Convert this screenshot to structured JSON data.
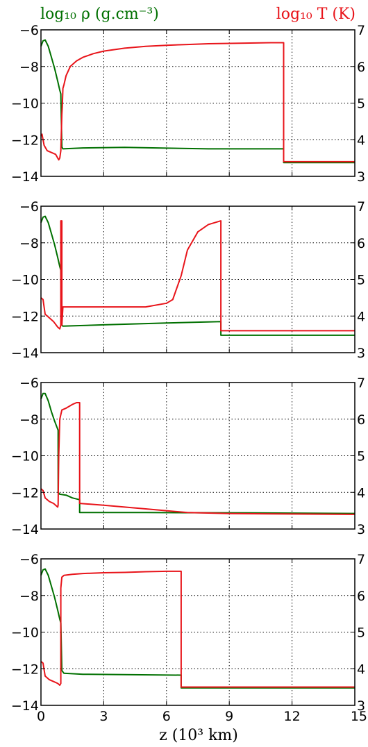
{
  "labels": {
    "left_axis": "log₁₀ ρ (g.cm⁻³)",
    "right_axis": "log₁₀ T (K)",
    "x_axis": "z (10³ km)"
  },
  "colors": {
    "density": "#007000",
    "temperature": "#e8141a"
  },
  "chart_data": [
    {
      "type": "line",
      "xlim": [
        0,
        15
      ],
      "ylim": [
        -14,
        -6
      ],
      "y2lim": [
        3,
        7
      ],
      "xticks": [
        "0",
        "3",
        "6",
        "9",
        "12",
        "15"
      ],
      "yticks": [
        "-6",
        "-8",
        "-10",
        "-12",
        "-14"
      ],
      "y2ticks": [
        "7",
        "6",
        "5",
        "4",
        "3"
      ],
      "grid": true,
      "series": [
        {
          "name": "log10 rho",
          "axis": "left",
          "x": [
            0,
            0.1,
            0.2,
            0.35,
            0.5,
            0.65,
            0.8,
            0.9,
            0.95,
            1.0,
            1.05,
            2.0,
            4.0,
            6.0,
            8.0,
            10.0,
            11.6,
            11.6,
            15.0
          ],
          "y": [
            -6.9,
            -6.6,
            -6.55,
            -6.9,
            -7.5,
            -8.1,
            -8.8,
            -9.3,
            -9.5,
            -12.4,
            -12.5,
            -12.45,
            -12.42,
            -12.46,
            -12.5,
            -12.5,
            -12.5,
            -13.25,
            -13.25
          ]
        },
        {
          "name": "log10 T",
          "axis": "right",
          "x": [
            0,
            0.05,
            0.15,
            0.3,
            0.5,
            0.7,
            0.8,
            0.85,
            0.9,
            0.95,
            1.0,
            1.02,
            1.05,
            1.1,
            1.2,
            1.4,
            1.7,
            2.0,
            2.5,
            3.0,
            4.0,
            5.0,
            6.0,
            7.0,
            8.0,
            9.0,
            10.0,
            11.0,
            11.6,
            11.6,
            15.0
          ],
          "y": [
            4.1,
            4.15,
            3.85,
            3.7,
            3.65,
            3.6,
            3.5,
            3.45,
            3.5,
            3.7,
            4.7,
            4.9,
            5.4,
            5.5,
            5.75,
            6.0,
            6.15,
            6.25,
            6.35,
            6.42,
            6.5,
            6.55,
            6.58,
            6.6,
            6.62,
            6.63,
            6.64,
            6.65,
            6.65,
            3.4,
            3.4
          ]
        }
      ]
    },
    {
      "type": "line",
      "xlim": [
        0,
        15
      ],
      "ylim": [
        -14,
        -6
      ],
      "y2lim": [
        3,
        7
      ],
      "xticks": [
        "0",
        "3",
        "6",
        "9",
        "12",
        "15"
      ],
      "yticks": [
        "-6",
        "-8",
        "-10",
        "-12",
        "-14"
      ],
      "y2ticks": [
        "7",
        "6",
        "5",
        "4",
        "3"
      ],
      "grid": true,
      "series": [
        {
          "name": "log10 rho",
          "axis": "left",
          "x": [
            0,
            0.1,
            0.2,
            0.35,
            0.5,
            0.65,
            0.8,
            0.9,
            0.95,
            1.0,
            1.05,
            3.0,
            6.0,
            8.6,
            8.6,
            15.0
          ],
          "y": [
            -6.9,
            -6.6,
            -6.55,
            -6.9,
            -7.5,
            -8.1,
            -8.8,
            -9.3,
            -9.5,
            -12.5,
            -12.55,
            -12.48,
            -12.38,
            -12.3,
            -13.05,
            -13.05
          ]
        },
        {
          "name": "log10 T",
          "axis": "right",
          "x": [
            0,
            0.1,
            0.2,
            0.4,
            0.6,
            0.8,
            0.9,
            0.95,
            0.95,
            1.0,
            1.0,
            1.05,
            3.0,
            5.0,
            6.0,
            6.3,
            6.7,
            7.0,
            7.5,
            8.0,
            8.6,
            8.6,
            15.0
          ],
          "y": [
            4.5,
            4.45,
            4.05,
            3.95,
            3.85,
            3.7,
            3.65,
            3.75,
            6.6,
            6.6,
            3.75,
            4.25,
            4.25,
            4.25,
            4.35,
            4.45,
            5.1,
            5.8,
            6.3,
            6.5,
            6.6,
            3.6,
            3.6
          ]
        }
      ]
    },
    {
      "type": "line",
      "xlim": [
        0,
        15
      ],
      "ylim": [
        -14,
        -6
      ],
      "y2lim": [
        3,
        7
      ],
      "xticks": [
        "0",
        "3",
        "6",
        "9",
        "12",
        "15"
      ],
      "yticks": [
        "-6",
        "-8",
        "-10",
        "-12",
        "-14"
      ],
      "y2ticks": [
        "7",
        "6",
        "5",
        "4",
        "3"
      ],
      "grid": true,
      "series": [
        {
          "name": "log10 rho",
          "axis": "left",
          "x": [
            0,
            0.1,
            0.2,
            0.35,
            0.5,
            0.65,
            0.75,
            0.82,
            0.82,
            0.9,
            1.2,
            1.5,
            1.85,
            1.85,
            5.0,
            10.0,
            15.0
          ],
          "y": [
            -6.9,
            -6.6,
            -6.6,
            -7.0,
            -7.6,
            -8.1,
            -8.4,
            -8.6,
            -12.0,
            -12.1,
            -12.15,
            -12.3,
            -12.4,
            -13.1,
            -13.1,
            -13.12,
            -13.15
          ]
        },
        {
          "name": "log10 T",
          "axis": "right",
          "x": [
            0,
            0.1,
            0.2,
            0.4,
            0.6,
            0.7,
            0.8,
            0.82,
            0.85,
            0.9,
            1.0,
            1.2,
            1.5,
            1.7,
            1.85,
            1.85,
            3.0,
            5.0,
            7.0,
            9.0,
            15.0
          ],
          "y": [
            4.1,
            4.05,
            3.85,
            3.75,
            3.7,
            3.65,
            3.6,
            3.65,
            5.0,
            6.0,
            6.25,
            6.3,
            6.4,
            6.45,
            6.45,
            3.7,
            3.65,
            3.55,
            3.45,
            3.42,
            3.4
          ]
        }
      ]
    },
    {
      "type": "line",
      "xlim": [
        0,
        15
      ],
      "ylim": [
        -14,
        -6
      ],
      "y2lim": [
        3,
        7
      ],
      "xticks": [
        "0",
        "3",
        "6",
        "9",
        "12",
        "15"
      ],
      "yticks": [
        "-6",
        "-8",
        "-10",
        "-12",
        "-14"
      ],
      "y2ticks": [
        "7",
        "6",
        "5",
        "4",
        "3"
      ],
      "grid": true,
      "series": [
        {
          "name": "log10 rho",
          "axis": "left",
          "x": [
            0,
            0.1,
            0.2,
            0.35,
            0.5,
            0.65,
            0.8,
            0.9,
            0.95,
            1.0,
            1.1,
            2.0,
            4.0,
            6.7,
            6.7,
            15.0
          ],
          "y": [
            -6.9,
            -6.6,
            -6.55,
            -6.9,
            -7.5,
            -8.1,
            -8.8,
            -9.3,
            -9.5,
            -12.1,
            -12.25,
            -12.3,
            -12.32,
            -12.35,
            -13.05,
            -13.05
          ]
        },
        {
          "name": "log10 T",
          "axis": "right",
          "x": [
            0,
            0.1,
            0.2,
            0.4,
            0.6,
            0.8,
            0.9,
            0.95,
            0.95,
            1.0,
            1.1,
            1.5,
            2.0,
            3.0,
            4.0,
            5.0,
            6.0,
            6.7,
            6.7,
            15.0
          ],
          "y": [
            4.2,
            4.15,
            3.8,
            3.7,
            3.65,
            3.6,
            3.55,
            3.6,
            6.2,
            6.5,
            6.55,
            6.58,
            6.6,
            6.62,
            6.63,
            6.65,
            6.66,
            6.66,
            3.5,
            3.5
          ]
        }
      ]
    }
  ]
}
